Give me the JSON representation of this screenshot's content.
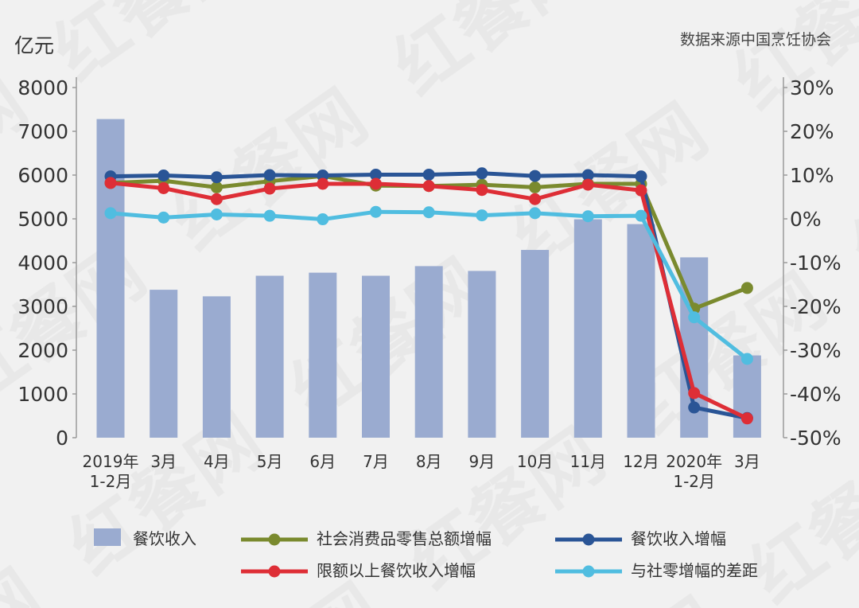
{
  "header": {
    "unit_label": "亿元",
    "source_label": "数据来源中国烹饪协会"
  },
  "colors": {
    "bar": "#9aabd0",
    "retail_growth": "#7a8a2e",
    "catering_growth": "#2a5596",
    "above_limit_growth": "#de2e36",
    "gap": "#50bde0"
  },
  "chart_data": {
    "type": "bar",
    "categories": [
      "2019年 1-2月",
      "3月",
      "4月",
      "5月",
      "6月",
      "7月",
      "8月",
      "9月",
      "10月",
      "11月",
      "12月",
      "2020年 1-2月",
      "3月"
    ],
    "category_lines": [
      [
        "2019年",
        "1-2月"
      ],
      [
        "3月"
      ],
      [
        "4月"
      ],
      [
        "5月"
      ],
      [
        "6月"
      ],
      [
        "7月"
      ],
      [
        "8月"
      ],
      [
        "9月"
      ],
      [
        "10月"
      ],
      [
        "11月"
      ],
      [
        "12月"
      ],
      [
        "2020年",
        "1-2月"
      ],
      [
        "3月"
      ]
    ],
    "ylabel": "亿元",
    "ylim": [
      0,
      8000
    ],
    "yticks": [
      "0",
      "1000",
      "2000",
      "3000",
      "4000",
      "5000",
      "6000",
      "7000",
      "8000"
    ],
    "y2lim": [
      -50,
      30
    ],
    "y2ticks": [
      "-50%",
      "-40%",
      "-30%",
      "-20%",
      "-10%",
      "0%",
      "10%",
      "20%",
      "30%"
    ],
    "grid": false,
    "legend_position": "bottom",
    "bar_series": {
      "name": "餐饮收入",
      "values": [
        7280,
        3380,
        3230,
        3700,
        3770,
        3700,
        3920,
        3810,
        4290,
        4990,
        4880,
        4120,
        1880
      ]
    },
    "line_series": [
      {
        "key": "retail_growth",
        "name": "社会消费品零售总额增幅",
        "values": [
          8.2,
          8.7,
          7.2,
          8.6,
          9.8,
          7.6,
          7.5,
          7.8,
          7.2,
          8.0,
          8.0,
          -20.5,
          -15.8
        ]
      },
      {
        "key": "catering_growth",
        "name": "餐饮收入增幅",
        "values": [
          9.7,
          9.9,
          9.5,
          10.0,
          9.9,
          10.1,
          10.1,
          10.4,
          9.8,
          10.0,
          9.7,
          -43.1,
          -45.5
        ]
      },
      {
        "key": "above_limit_growth",
        "name": "限额以上餐饮收入增幅",
        "values": [
          8.2,
          7.0,
          4.5,
          6.9,
          8.0,
          8.0,
          7.5,
          6.6,
          4.5,
          7.8,
          6.5,
          -39.8,
          -45.6
        ]
      },
      {
        "key": "gap",
        "name": "与社零增幅的差距",
        "values": [
          1.3,
          0.3,
          1.0,
          0.7,
          -0.1,
          1.6,
          1.5,
          0.8,
          1.3,
          0.6,
          0.7,
          -22.5,
          -32.0
        ]
      }
    ]
  }
}
